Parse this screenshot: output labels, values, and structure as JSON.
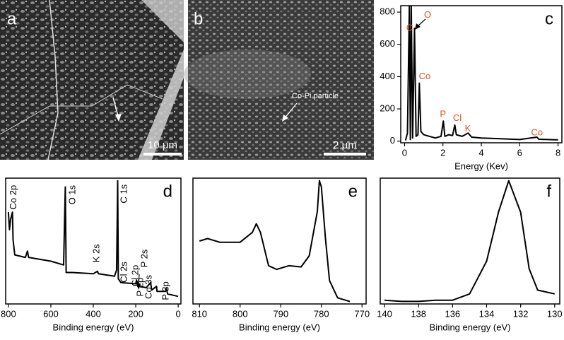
{
  "images": [
    {
      "label": "a",
      "scale_bar": "10 μm"
    },
    {
      "label": "b",
      "scale_bar": "2 μm",
      "annotation": "Co-Pi particle"
    }
  ],
  "chart_data": [
    {
      "type": "line",
      "label": "c",
      "x_label": "Energy (Kev)",
      "x": [
        0.05,
        0.15,
        0.25,
        0.3,
        0.35,
        0.42,
        0.52,
        0.6,
        0.7,
        0.77,
        0.85,
        1.0,
        1.3,
        1.6,
        1.9,
        2.02,
        2.1,
        2.3,
        2.5,
        2.62,
        2.7,
        3.0,
        3.31,
        3.5,
        4.0,
        5.0,
        6.0,
        6.9,
        7.0,
        8.0
      ],
      "values": [
        5,
        50,
        840,
        10,
        840,
        20,
        700,
        30,
        40,
        360,
        60,
        40,
        30,
        20,
        30,
        125,
        30,
        40,
        35,
        100,
        40,
        30,
        50,
        25,
        20,
        15,
        10,
        25,
        12,
        8
      ],
      "color": "#000000",
      "xlim": [
        -0.2,
        8.2
      ],
      "xticks": [
        0,
        2,
        4,
        6,
        8
      ],
      "ylim": [
        -10,
        840
      ],
      "yticks": [
        0,
        200,
        400,
        600,
        800
      ],
      "annotation_color": "#e8501e",
      "annotations": [
        {
          "text": "C",
          "x": 0.26,
          "y": 700
        },
        {
          "text": "O",
          "x": 1.2,
          "y": 780
        },
        {
          "text": "Co",
          "x": 1.05,
          "y": 400
        },
        {
          "text": "P",
          "x": 2.0,
          "y": 165
        },
        {
          "text": "Cl",
          "x": 2.75,
          "y": 140
        },
        {
          "text": "K",
          "x": 3.3,
          "y": 75
        },
        {
          "text": "Co",
          "x": 6.9,
          "y": 50
        }
      ]
    },
    {
      "type": "line",
      "label": "d",
      "x_label": "Binding energy (eV)",
      "x": [
        800,
        795,
        790,
        781,
        778,
        770,
        720,
        710,
        705,
        600,
        540,
        532,
        528,
        500,
        400,
        380,
        376,
        300,
        290,
        285,
        282,
        270,
        200,
        196,
        190,
        150,
        130,
        125,
        102,
        100,
        60,
        55,
        50,
        0
      ],
      "values": [
        73,
        59,
        67,
        73,
        51,
        39,
        37,
        42,
        37,
        34,
        31,
        93,
        25,
        25,
        24,
        26,
        24,
        22,
        27,
        98,
        20,
        17,
        16,
        19,
        14,
        13,
        17,
        11,
        14,
        10,
        10,
        12,
        8,
        6
      ],
      "color": "#000000",
      "xlim": [
        813,
        -13
      ],
      "xticks": [
        800,
        600,
        400,
        200,
        0
      ],
      "ylim": [
        0,
        100
      ],
      "rotated_labels": true,
      "annotation_color": "#000000",
      "annotations": [
        {
          "text": "Co 2p",
          "x": 775,
          "y": 75
        },
        {
          "text": "O 1s",
          "x": 497,
          "y": 79
        },
        {
          "text": "C 1s",
          "x": 253,
          "y": 80
        },
        {
          "text": "K 2s",
          "x": 383,
          "y": 33
        },
        {
          "text": "Cl 2s",
          "x": 253,
          "y": 17
        },
        {
          "text": "Cl 2p",
          "x": 200,
          "y": 14
        },
        {
          "text": "P 2s",
          "x": 157,
          "y": 29
        },
        {
          "text": "P 2p",
          "x": 177,
          "y": 6
        },
        {
          "text": "Co 3s",
          "x": 137,
          "y": 4
        },
        {
          "text": "P 3p",
          "x": 57,
          "y": 3
        }
      ]
    },
    {
      "type": "line",
      "label": "e",
      "x_label": "Binding energy (eV)",
      "x": [
        810,
        808,
        805,
        800,
        797,
        796,
        795,
        793,
        791,
        788,
        785,
        783,
        781,
        780.5,
        780,
        779,
        778,
        776,
        774,
        773
      ],
      "values": [
        49,
        51,
        48,
        48,
        56,
        63,
        56,
        29,
        26,
        29,
        28,
        37,
        73,
        98,
        93,
        51,
        17,
        3,
        1,
        0
      ],
      "color": "#000000",
      "xlim": [
        811.6,
        769
      ],
      "xticks": [
        810,
        800,
        790,
        780,
        770
      ],
      "ylim": [
        -2,
        100
      ]
    },
    {
      "type": "line",
      "label": "f",
      "x_label": "Binding energy (eV)",
      "x": [
        140,
        139,
        138,
        137,
        136,
        135,
        134,
        133.3,
        132.7,
        132,
        131.5,
        131,
        130
      ],
      "values": [
        3,
        2,
        2,
        3,
        3,
        8,
        34,
        73,
        98,
        73,
        28,
        11,
        8
      ],
      "color": "#000000",
      "xlim": [
        140.25,
        129.7
      ],
      "xticks": [
        140,
        138,
        136,
        134,
        132,
        130
      ],
      "ylim": [
        0,
        100
      ]
    }
  ]
}
